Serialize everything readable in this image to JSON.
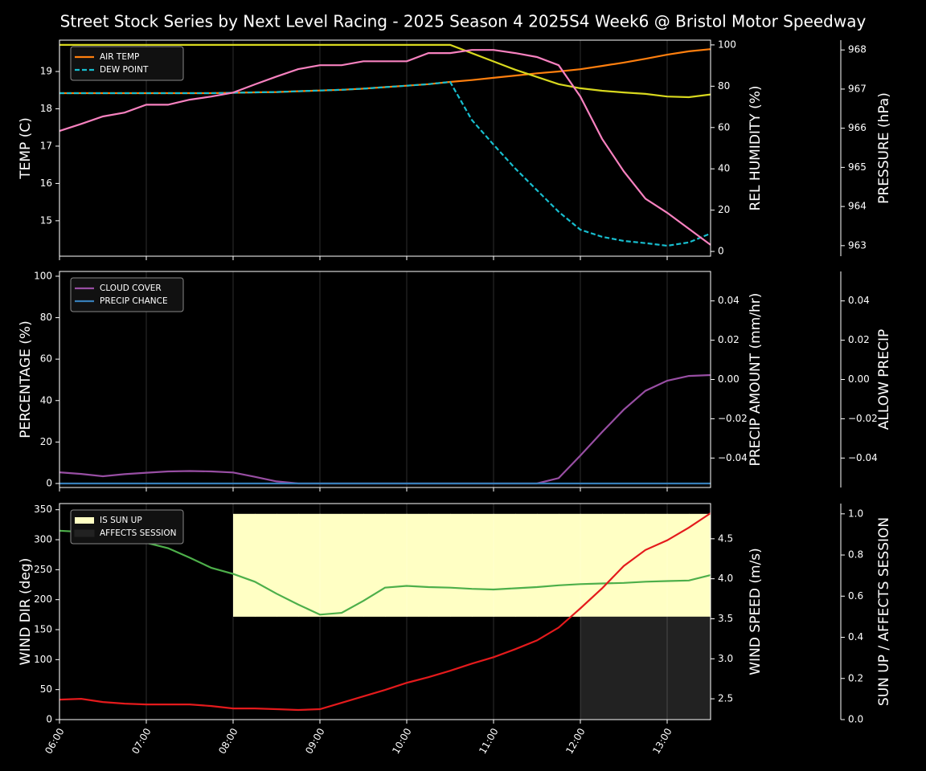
{
  "title": "Street Stock Series by Next Level Racing - 2025 Season 4 2025S4 Week6 @ Bristol Motor Speedway",
  "chart_data": [
    {
      "type": "line",
      "legend": "upper left",
      "grid": true,
      "x": [
        6,
        6.25,
        6.5,
        6.75,
        7,
        7.25,
        7.5,
        7.75,
        8,
        8.25,
        8.5,
        8.75,
        9,
        9.25,
        9.5,
        9.75,
        10,
        10.25,
        10.5,
        10.75,
        11,
        11.25,
        11.5,
        11.75,
        12,
        12.25,
        12.5,
        12.75,
        13,
        13.25,
        13.5
      ],
      "xlim": [
        6,
        13.5
      ],
      "xticks": [
        6,
        7,
        8,
        9,
        10,
        11,
        12,
        13
      ],
      "ylabel": "TEMP (C)",
      "ylim": [
        14.05,
        19.84
      ],
      "yticks": [
        15,
        16,
        17,
        18,
        19
      ],
      "ylabel_color": "#ffffff",
      "y2label": "REL HUMIDITY (%)",
      "y2lim": [
        -2.3,
        102.3
      ],
      "y2ticks": [
        0,
        20,
        40,
        60,
        80,
        100
      ],
      "y2label_color": "#d8d81e",
      "y3label": "PRESSURE (hPa)",
      "y3lim": [
        962.73,
        968.25
      ],
      "y3ticks": [
        963,
        964,
        965,
        966,
        967,
        968
      ],
      "y3label_color": "#f781bf",
      "series": [
        {
          "name": "AIR TEMP",
          "color": "#ff7f0e",
          "axis": "y",
          "values": [
            18.42,
            18.42,
            18.42,
            18.42,
            18.42,
            18.42,
            18.42,
            18.42,
            18.43,
            18.44,
            18.45,
            18.47,
            18.49,
            18.51,
            18.54,
            18.58,
            18.62,
            18.66,
            18.72,
            18.77,
            18.83,
            18.89,
            18.95,
            19.0,
            19.06,
            19.15,
            19.24,
            19.34,
            19.45,
            19.54,
            19.6
          ]
        },
        {
          "name": "DEW POINT",
          "color": "#17becf",
          "axis": "y",
          "linestyle": "dashed",
          "values": [
            18.42,
            18.42,
            18.42,
            18.42,
            18.42,
            18.42,
            18.42,
            18.42,
            18.43,
            18.44,
            18.45,
            18.47,
            18.49,
            18.51,
            18.54,
            18.58,
            18.62,
            18.66,
            18.72,
            17.7,
            17.04,
            16.4,
            15.82,
            15.24,
            14.76,
            14.57,
            14.46,
            14.4,
            14.33,
            14.42,
            14.66
          ]
        },
        {
          "color": "#d8d81e",
          "axis": "y2",
          "values": [
            100,
            100,
            100,
            100,
            100,
            100,
            100,
            100,
            100,
            100,
            100,
            100,
            100,
            100,
            100,
            100,
            100,
            100,
            100,
            96,
            92,
            88,
            84.5,
            81,
            79,
            77.8,
            77,
            76.3,
            75,
            74.7,
            76
          ]
        },
        {
          "color": "#f781bf",
          "axis": "y3",
          "values": [
            965.93,
            966.11,
            966.3,
            966.4,
            966.6,
            966.6,
            966.73,
            966.81,
            966.91,
            967.12,
            967.32,
            967.51,
            967.61,
            967.61,
            967.71,
            967.71,
            967.71,
            967.92,
            967.92,
            968.0,
            968.0,
            967.92,
            967.82,
            967.61,
            966.81,
            965.73,
            964.9,
            964.2,
            963.84,
            963.43,
            963.02
          ]
        }
      ]
    },
    {
      "type": "line",
      "legend": "upper left",
      "grid": true,
      "x": [
        6,
        6.25,
        6.5,
        6.75,
        7,
        7.25,
        7.5,
        7.75,
        8,
        8.25,
        8.5,
        8.75,
        9,
        9.25,
        9.5,
        9.75,
        10,
        10.25,
        10.5,
        10.75,
        11,
        11.25,
        11.5,
        11.75,
        12,
        12.25,
        12.5,
        12.75,
        13,
        13.25,
        13.5
      ],
      "xlim": [
        6,
        13.5
      ],
      "xticks": [
        6,
        7,
        8,
        9,
        10,
        11,
        12,
        13
      ],
      "ylabel": "PERCENTAGE (%)",
      "ylim": [
        -1.94,
        102.3
      ],
      "yticks": [
        0,
        20,
        40,
        60,
        80,
        100
      ],
      "ylabel_color": "#ffffff",
      "y2label": "PRECIP AMOUNT (mm/hr)",
      "y2lim": [
        -0.055,
        0.055
      ],
      "y2ticks": [
        {
          "value": -0.04,
          "label": "−0.04"
        },
        {
          "value": -0.02,
          "label": "−0.02"
        },
        {
          "value": 0,
          "label": "0.00"
        },
        0.02,
        0.04
      ],
      "y2label_color": "#a0522d",
      "y3label": "ALLOW PRECIP",
      "y3lim": [
        -0.055,
        0.055
      ],
      "y3ticks": [
        {
          "value": -0.04,
          "label": "−0.04"
        },
        {
          "value": -0.02,
          "label": "−0.02"
        },
        {
          "value": 0,
          "label": "0.00"
        },
        0.02,
        0.04
      ],
      "y3label_color": "#ffffff",
      "series": [
        {
          "name": "CLOUD COVER",
          "color": "#984ea3",
          "axis": "y",
          "values": [
            5.4,
            4.6,
            3.5,
            4.5,
            5.2,
            5.8,
            6,
            5.8,
            5.3,
            3.2,
            1,
            0,
            0,
            0,
            0,
            0,
            0,
            0,
            0,
            0,
            0,
            0,
            0,
            2.6,
            13.5,
            24.8,
            35.6,
            44.7,
            49.6,
            51.9,
            52.3
          ]
        },
        {
          "name": "PRECIP CHANCE",
          "color": "#377eb8",
          "axis": "y",
          "values": [
            0,
            0,
            0,
            0,
            0,
            0,
            0,
            0,
            0,
            0,
            0,
            0,
            0,
            0,
            0,
            0,
            0,
            0,
            0,
            0,
            0,
            0,
            0,
            0,
            0,
            0,
            0,
            0,
            0,
            0,
            0
          ]
        }
      ]
    },
    {
      "type": "line",
      "legend": "upper left",
      "grid": true,
      "x": [
        6,
        6.25,
        6.5,
        6.75,
        7,
        7.25,
        7.5,
        7.75,
        8,
        8.25,
        8.5,
        8.75,
        9,
        9.25,
        9.5,
        9.75,
        10,
        10.25,
        10.5,
        10.75,
        11,
        11.25,
        11.5,
        11.75,
        12,
        12.25,
        12.5,
        12.75,
        13,
        13.25,
        13.5
      ],
      "xlim": [
        6,
        13.5
      ],
      "xticks": [
        {
          "value": 6,
          "label": "06:00"
        },
        {
          "value": 7,
          "label": "07:00"
        },
        {
          "value": 8,
          "label": "08:00"
        },
        {
          "value": 9,
          "label": "09:00"
        },
        {
          "value": 10,
          "label": "10:00"
        },
        {
          "value": 11,
          "label": "11:00"
        },
        {
          "value": 12,
          "label": "12:00"
        },
        {
          "value": 13,
          "label": "13:00"
        }
      ],
      "ylabel": "WIND DIR (deg)",
      "ylim": [
        0,
        360.3
      ],
      "yticks": [
        0,
        50,
        100,
        150,
        200,
        250,
        300,
        350
      ],
      "ylabel_color": "#4daf4a",
      "y2label": "WIND SPEED (m/s)",
      "y2lim": [
        2.24,
        4.94
      ],
      "y2ticks": [
        2.5,
        {
          "value": 3,
          "label": "3.0"
        },
        3.5,
        {
          "value": 4,
          "label": "4.0"
        },
        4.5
      ],
      "y2label_color": "#e41a1c",
      "y3label": "SUN UP / AFFECTS SESSION",
      "y3lim": [
        0,
        1.05
      ],
      "y3ticks": [
        {
          "value": 0,
          "label": "0.0"
        },
        0.2,
        0.4,
        0.6,
        0.8,
        {
          "value": 1,
          "label": "1.0"
        }
      ],
      "y3label_color": "#ffffff",
      "series": [
        {
          "name": "IS SUN UP",
          "color": "#ffffc4",
          "axis": "y3",
          "style": "fill",
          "values": [
            0,
            0,
            0,
            0,
            0,
            0,
            0,
            0,
            1,
            1,
            1,
            1,
            1,
            1,
            1,
            1,
            1,
            1,
            1,
            1,
            1,
            1,
            1,
            1,
            1,
            1,
            1,
            1,
            1,
            1,
            1
          ]
        },
        {
          "name": "AFFECTS SESSION",
          "color": "#222222",
          "axis": "y3",
          "style": "fill",
          "values": [
            0,
            0,
            0,
            0,
            0,
            0,
            0,
            0,
            0,
            0,
            0,
            0,
            0,
            0,
            0,
            0,
            0,
            0,
            0,
            0,
            0,
            0,
            0,
            0,
            1,
            1,
            1,
            1,
            1,
            1,
            1
          ]
        },
        {
          "color": "#4daf4a",
          "axis": "y",
          "values": [
            315,
            313,
            300,
            297,
            295,
            286,
            270,
            253,
            243,
            230,
            210,
            192,
            175,
            178,
            198,
            220,
            223,
            221,
            220,
            218,
            217,
            219,
            221,
            224,
            226,
            227,
            228,
            230,
            231,
            232,
            241
          ]
        },
        {
          "color": "#e41a1c",
          "axis": "y2",
          "values": [
            2.49,
            2.5,
            2.46,
            2.44,
            2.43,
            2.43,
            2.43,
            2.41,
            2.38,
            2.38,
            2.37,
            2.36,
            2.37,
            2.45,
            2.53,
            2.61,
            2.7,
            2.77,
            2.85,
            2.94,
            3.02,
            3.12,
            3.23,
            3.39,
            3.63,
            3.88,
            4.16,
            4.36,
            4.48,
            4.64,
            4.82
          ]
        }
      ]
    }
  ]
}
